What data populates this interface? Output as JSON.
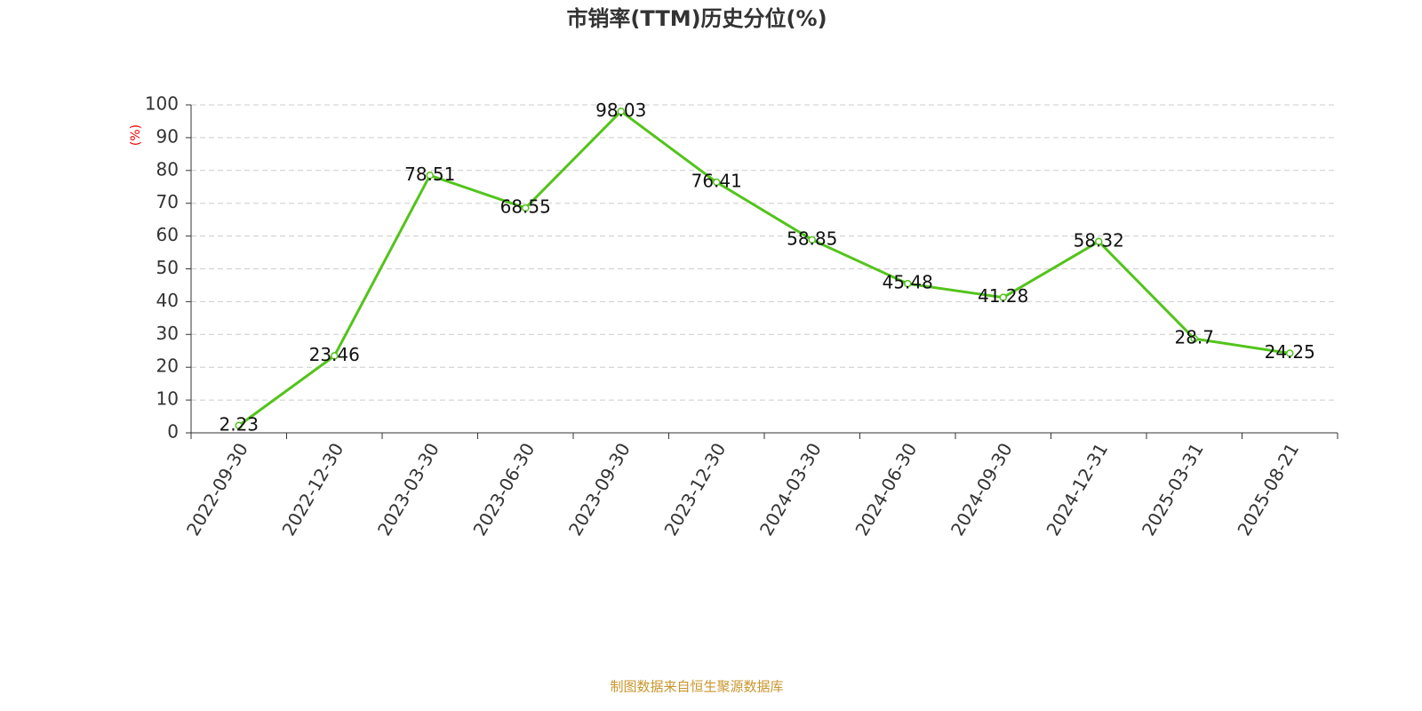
{
  "chart_data": {
    "type": "line",
    "title": "市销率(TTM)历史分位(%)",
    "y_label": "(%)",
    "source": "制图数据来自恒生聚源数据库",
    "categories": [
      "2022-09-30",
      "2022-12-30",
      "2023-03-30",
      "2023-06-30",
      "2023-09-30",
      "2023-12-30",
      "2024-03-30",
      "2024-06-30",
      "2024-09-30",
      "2024-12-31",
      "2025-03-31",
      "2025-08-21"
    ],
    "values": [
      2.23,
      23.46,
      78.51,
      68.55,
      98.03,
      76.41,
      58.85,
      45.48,
      41.28,
      58.32,
      28.7,
      24.25
    ],
    "color": "#52c41a",
    "ylim": [
      0,
      100
    ],
    "yticks": [
      0,
      10,
      20,
      30,
      40,
      50,
      60,
      70,
      80,
      90,
      100
    ],
    "grid": true
  }
}
